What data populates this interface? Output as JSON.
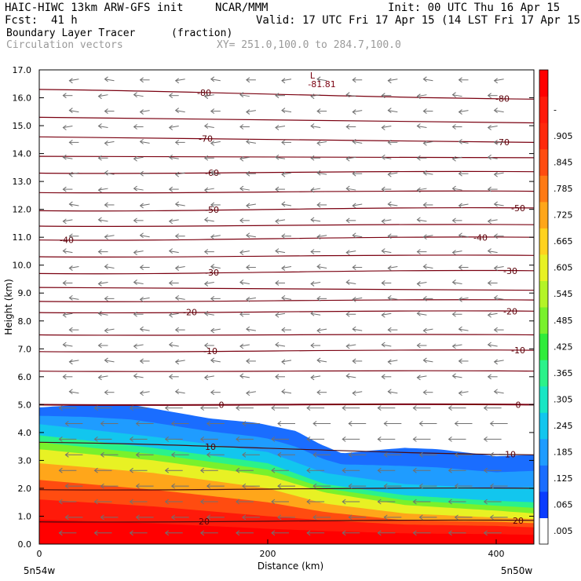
{
  "header": {
    "model": "HAIC-HIWC 13km ARW-GFS init",
    "org": "NCAR/MMM",
    "init": "Init: 00 UTC Thu 16 Apr 15",
    "fcst_label": "Fcst:",
    "fcst_value": "41 h",
    "valid": "Valid: 17 UTC Fri 17 Apr 15 (14 LST Fri 17 Apr 15)",
    "field_name": "Boundary Layer Tracer",
    "field_units": "(fraction)",
    "vectors": "Circulation vectors",
    "xy": "XY= 251.0,100.0 to 284.7,100.0"
  },
  "chart_data": {
    "type": "heatmap",
    "title": "Boundary Layer Tracer",
    "units": "(fraction)",
    "xlabel": "Distance (km)",
    "ylabel": "Height (km)",
    "xlim": [
      0,
      433
    ],
    "ylim": [
      0,
      17
    ],
    "x_ticks": [
      0,
      200,
      400
    ],
    "y_ticks": [
      "0.0",
      "1.0",
      "2.0",
      "3.0",
      "4.0",
      "5.0",
      "6.0",
      "7.0",
      "8.0",
      "9.0",
      "10.0",
      "11.0",
      "12.0",
      "13.0",
      "14.0",
      "15.0",
      "16.0",
      "17.0"
    ],
    "x_end_labels": [
      "5n54w",
      "5n50w"
    ],
    "colorbar": {
      "labels": [
        ".005",
        ".065",
        ".125",
        ".185",
        ".245",
        ".305",
        ".365",
        ".425",
        ".485",
        ".545",
        ".605",
        ".665",
        ".725",
        ".785",
        ".845",
        ".905",
        "-"
      ],
      "colors": [
        "#ffffff",
        "#0a3cff",
        "#1a6dff",
        "#1f9cff",
        "#12c6ee",
        "#18e6c4",
        "#2bf28a",
        "#30ec3a",
        "#79f12c",
        "#b4f428",
        "#e8f124",
        "#ffd21e",
        "#ffa61a",
        "#ff7a14",
        "#ff4c10",
        "#ff2a0c",
        "#ff1a0a",
        "#ff0000"
      ]
    },
    "tracer_top_km": [
      [
        0,
        4.9
      ],
      [
        40,
        5.0
      ],
      [
        80,
        5.0
      ],
      [
        115,
        4.75
      ],
      [
        150,
        4.5
      ],
      [
        190,
        4.35
      ],
      [
        225,
        4.05
      ],
      [
        245,
        3.6
      ],
      [
        265,
        3.25
      ],
      [
        290,
        3.35
      ],
      [
        320,
        3.45
      ],
      [
        350,
        3.4
      ],
      [
        380,
        3.25
      ],
      [
        400,
        3.15
      ],
      [
        433,
        3.2
      ]
    ],
    "tracer_layers": [
      {
        "value": 0.185,
        "heights_km": [
          [
            0,
            4.3
          ],
          [
            100,
            3.85
          ],
          [
            200,
            3.3
          ],
          [
            250,
            2.55
          ],
          [
            320,
            2.15
          ],
          [
            400,
            2.0
          ],
          [
            433,
            2.05
          ]
        ]
      },
      {
        "value": 0.305,
        "heights_km": [
          [
            0,
            3.9
          ],
          [
            100,
            3.45
          ],
          [
            200,
            2.9
          ],
          [
            250,
            2.15
          ],
          [
            320,
            1.75
          ],
          [
            400,
            1.55
          ],
          [
            433,
            1.5
          ]
        ]
      },
      {
        "value": 0.545,
        "heights_km": [
          [
            0,
            3.4
          ],
          [
            100,
            3.0
          ],
          [
            200,
            2.45
          ],
          [
            250,
            1.85
          ],
          [
            320,
            1.4
          ],
          [
            400,
            1.2
          ],
          [
            433,
            1.1
          ]
        ]
      },
      {
        "value": 0.665,
        "heights_km": [
          [
            0,
            2.9
          ],
          [
            100,
            2.55
          ],
          [
            200,
            2.0
          ],
          [
            250,
            1.45
          ],
          [
            320,
            1.1
          ],
          [
            400,
            0.95
          ],
          [
            433,
            0.9
          ]
        ]
      },
      {
        "value": 0.785,
        "heights_km": [
          [
            0,
            2.3
          ],
          [
            100,
            1.95
          ],
          [
            200,
            1.5
          ],
          [
            250,
            1.15
          ],
          [
            320,
            0.85
          ],
          [
            400,
            0.8
          ],
          [
            433,
            0.75
          ]
        ]
      },
      {
        "value": 0.905,
        "heights_km": [
          [
            0,
            1.6
          ],
          [
            100,
            1.35
          ],
          [
            200,
            1.0
          ],
          [
            250,
            0.85
          ],
          [
            320,
            0.7
          ],
          [
            400,
            0.65
          ],
          [
            433,
            0.6
          ]
        ]
      }
    ],
    "isotherm_labels": [
      "-80",
      "-80",
      "-70",
      "-70",
      "-60",
      "-50",
      "-50",
      "-40",
      "-40",
      "-30",
      "-30",
      "-20",
      "-20",
      "-10",
      "-10",
      "0",
      "0",
      "10",
      "10",
      "20",
      "20"
    ],
    "low_marker": {
      "symbol": "L",
      "value": "-81.81"
    }
  }
}
